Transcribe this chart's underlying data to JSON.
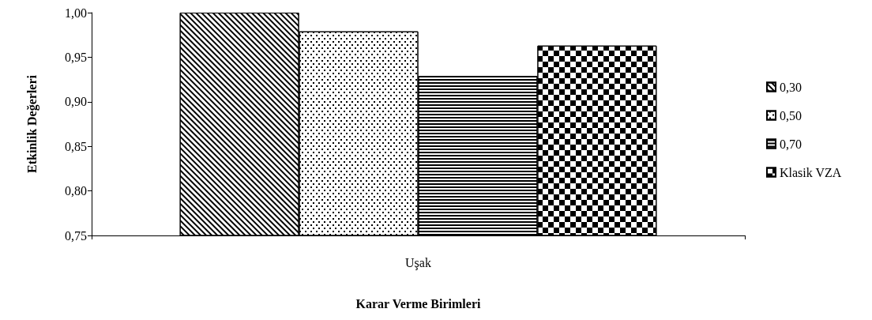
{
  "chart_data": {
    "type": "bar",
    "xlabel": "Karar Verme Birimleri",
    "ylabel": "Etkinlik Değerleri",
    "categories": [
      "Uşak"
    ],
    "series": [
      {
        "name": "0,30",
        "color": "#000000",
        "values": [
          1.0
        ]
      },
      {
        "name": "0,50",
        "color": "#000000",
        "values": [
          0.979
        ]
      },
      {
        "name": "0,70",
        "color": "#000000",
        "values": [
          0.929
        ]
      },
      {
        "name": "Klasik VZA",
        "color": "#000000",
        "values": [
          0.963
        ]
      }
    ],
    "ylim": [
      0.75,
      1.0
    ],
    "yticks": [
      {
        "value": 0.75,
        "label": "0,75"
      },
      {
        "value": 0.8,
        "label": "0,80"
      },
      {
        "value": 0.85,
        "label": "0,85"
      },
      {
        "value": 0.9,
        "label": "0,90"
      },
      {
        "value": 0.95,
        "label": "0,95"
      },
      {
        "value": 1.0,
        "label": "1,00"
      }
    ],
    "grid": false,
    "legend": "right"
  }
}
